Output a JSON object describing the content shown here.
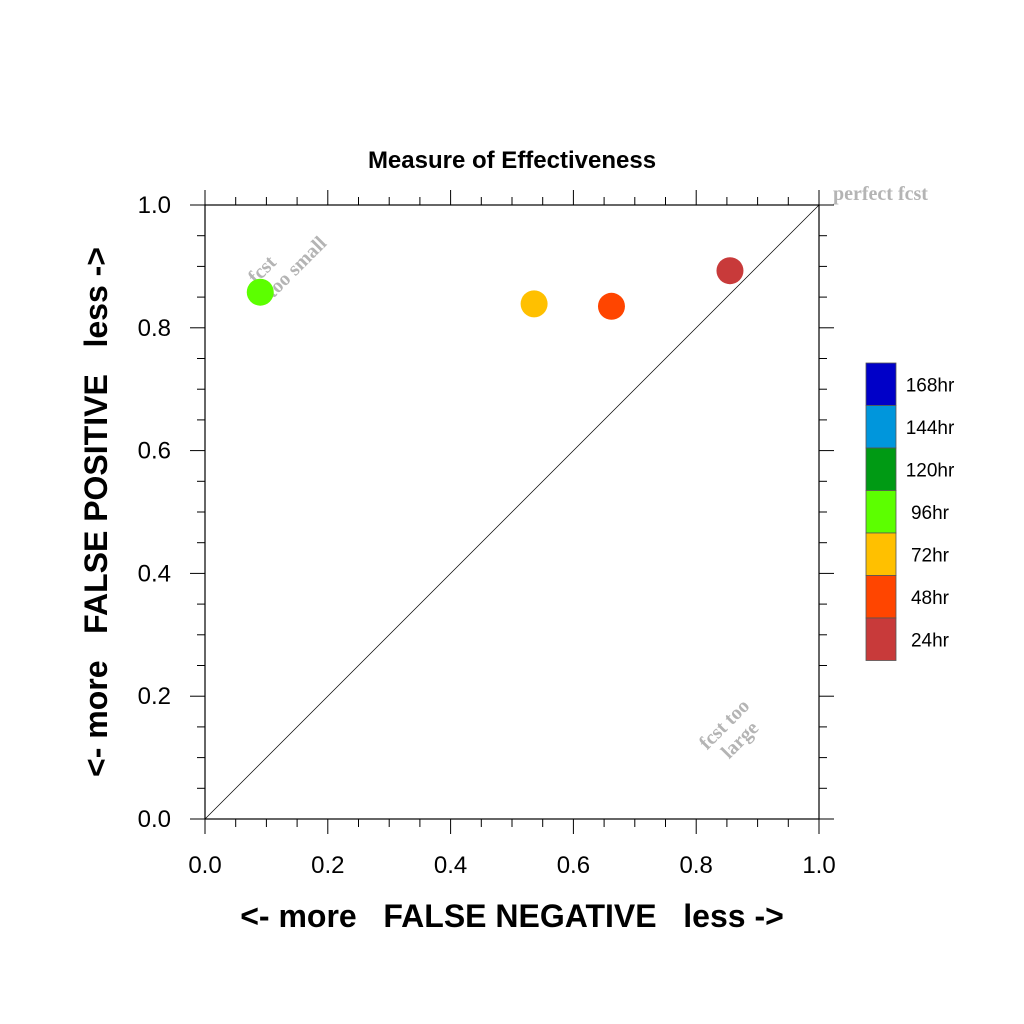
{
  "chart_data": {
    "type": "scatter",
    "title": "Measure of Effectiveness",
    "xlabel": "<- more   FALSE NEGATIVE   less ->",
    "ylabel": "<- more   FALSE POSITIVE   less ->",
    "xlim": [
      0.0,
      1.0
    ],
    "ylim": [
      0.0,
      1.0
    ],
    "x_ticks": [
      "0.0",
      "0.2",
      "0.4",
      "0.6",
      "0.8",
      "1.0"
    ],
    "y_ticks": [
      "0.0",
      "0.2",
      "0.4",
      "0.6",
      "0.8",
      "1.0"
    ],
    "grid": false,
    "diagonal_line": true,
    "points": [
      {
        "label": "24hr",
        "x": 0.855,
        "y": 0.893,
        "color": "#c83a3a"
      },
      {
        "label": "48hr",
        "x": 0.662,
        "y": 0.835,
        "color": "#ff4500"
      },
      {
        "label": "72hr",
        "x": 0.536,
        "y": 0.839,
        "color": "#ffc000"
      },
      {
        "label": "96hr",
        "x": 0.09,
        "y": 0.858,
        "color": "#5cff00"
      }
    ],
    "annotations": [
      {
        "lines": [
          "perfect fcst"
        ],
        "x": 1.0,
        "y": 1.0,
        "rotate": 0
      },
      {
        "lines": [
          "fcst",
          "too small"
        ],
        "x": 0.09,
        "y": 0.86,
        "rotate": -45
      },
      {
        "lines": [
          "fcst too",
          "large"
        ],
        "x": 0.86,
        "y": 0.14,
        "rotate": -45
      }
    ],
    "legend": {
      "placement": "right",
      "entries": [
        {
          "label": "168hr",
          "color": "#0000c8"
        },
        {
          "label": "144hr",
          "color": "#0096dc"
        },
        {
          "label": "120hr",
          "color": "#009a14"
        },
        {
          "label": "96hr",
          "color": "#5cff00"
        },
        {
          "label": "72hr",
          "color": "#ffc000"
        },
        {
          "label": "48hr",
          "color": "#ff4500"
        },
        {
          "label": "24hr",
          "color": "#c83a3a"
        }
      ]
    }
  }
}
